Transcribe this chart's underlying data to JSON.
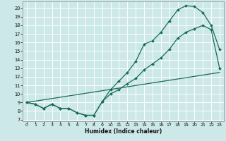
{
  "title": "",
  "xlabel": "Humidex (Indice chaleur)",
  "bg_color": "#cce8e8",
  "line_color": "#1a6b5a",
  "grid_color": "#ffffff",
  "xlim": [
    -0.5,
    23.5
  ],
  "ylim": [
    6.8,
    20.8
  ],
  "yticks": [
    7,
    8,
    9,
    10,
    11,
    12,
    13,
    14,
    15,
    16,
    17,
    18,
    19,
    20
  ],
  "xticks": [
    0,
    1,
    2,
    3,
    4,
    5,
    6,
    7,
    8,
    9,
    10,
    11,
    12,
    13,
    14,
    15,
    16,
    17,
    18,
    19,
    20,
    21,
    22,
    23
  ],
  "line1_x": [
    0,
    1,
    2,
    3,
    4,
    5,
    6,
    7,
    8,
    9,
    10,
    11,
    12,
    13,
    14,
    15,
    16,
    17,
    18,
    19,
    20,
    21,
    22,
    23
  ],
  "line1_y": [
    9.0,
    8.8,
    8.3,
    8.8,
    8.3,
    8.3,
    7.8,
    7.5,
    7.5,
    9.1,
    10.5,
    11.5,
    12.5,
    13.8,
    15.8,
    16.2,
    17.2,
    18.5,
    19.8,
    20.3,
    20.2,
    19.5,
    18.0,
    15.2
  ],
  "line2_x": [
    0,
    1,
    2,
    3,
    4,
    5,
    6,
    7,
    8,
    9,
    10,
    11,
    12,
    13,
    14,
    15,
    16,
    17,
    18,
    19,
    20,
    21,
    22,
    23
  ],
  "line2_y": [
    9.0,
    8.8,
    8.3,
    8.8,
    8.3,
    8.3,
    7.8,
    7.5,
    7.5,
    9.1,
    10.0,
    10.5,
    11.2,
    11.8,
    12.8,
    13.5,
    14.2,
    15.2,
    16.5,
    17.2,
    17.6,
    18.0,
    17.5,
    13.0
  ],
  "line3_x": [
    0,
    23
  ],
  "line3_y": [
    9.0,
    12.5
  ]
}
